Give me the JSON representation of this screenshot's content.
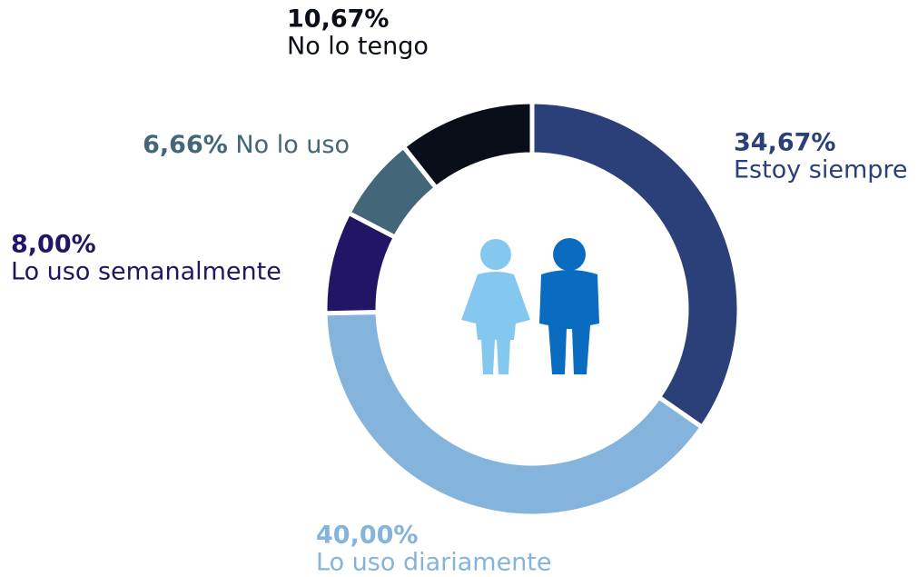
{
  "chart_data": {
    "type": "donut",
    "categories": [
      "Estoy siempre",
      "Lo uso diariamente",
      "Lo uso semanalmente",
      "No lo uso",
      "No lo tengo"
    ],
    "values": [
      34.67,
      40.0,
      8.0,
      6.66,
      10.67
    ],
    "value_labels": [
      "34,67%",
      "40,00%",
      "8,00%",
      "6,66%",
      "10,67%"
    ],
    "colors": [
      "#2b3f78",
      "#84b4dc",
      "#221565",
      "#436678",
      "#0a0e18"
    ]
  }
}
